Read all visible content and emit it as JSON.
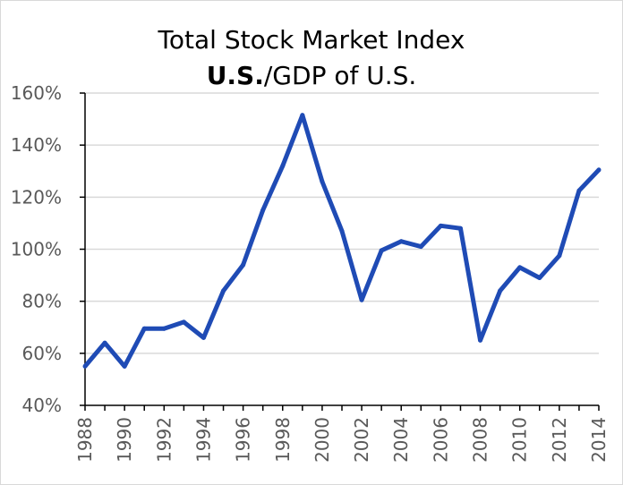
{
  "chart_data": {
    "type": "line",
    "title_line1": "Total Stock Market Index",
    "title_line2_bold": "U.S.",
    "title_line2_rest": "/GDP of U.S.",
    "xlabel": "",
    "ylabel": "",
    "x": [
      1988,
      1989,
      1990,
      1991,
      1992,
      1993,
      1994,
      1995,
      1996,
      1997,
      1998,
      1999,
      2000,
      2001,
      2002,
      2003,
      2004,
      2005,
      2006,
      2007,
      2008,
      2009,
      2010,
      2011,
      2012,
      2013,
      2014
    ],
    "series": [
      {
        "values": [
          55,
          64,
          55,
          69.5,
          69.5,
          72,
          66,
          84,
          94,
          115,
          132,
          151.5,
          126,
          107,
          80.5,
          99.5,
          103,
          101,
          109,
          108,
          65,
          84,
          93,
          89,
          97.5,
          122.5,
          130.5
        ],
        "color": "#1f4bb5"
      }
    ],
    "xticks": [
      "1988",
      "1990",
      "1992",
      "1994",
      "1996",
      "1998",
      "2000",
      "2002",
      "2004",
      "2006",
      "2008",
      "2010",
      "2012",
      "2014"
    ],
    "yticks": [
      "40%",
      "60%",
      "80%",
      "100%",
      "120%",
      "140%",
      "160%"
    ],
    "ytick_values": [
      40,
      60,
      80,
      100,
      120,
      140,
      160
    ],
    "ylim": [
      40,
      160
    ],
    "xlim": [
      1988,
      2014
    ],
    "grid": true,
    "legend": "none",
    "colors": {
      "line": "#1f4bb5",
      "grid": "#d9d9d9",
      "axis": "#000000",
      "tick_label": "#595959"
    }
  }
}
